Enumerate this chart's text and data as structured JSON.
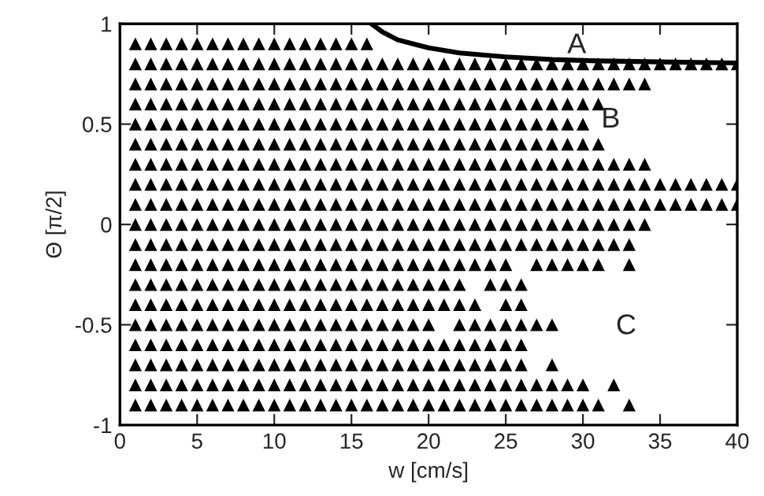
{
  "chart_data": {
    "type": "scatter",
    "xlabel": "w [cm/s]",
    "ylabel": "Θ [π/2]",
    "xlim": [
      0,
      40
    ],
    "ylim": [
      -1,
      1
    ],
    "xticks": [
      0,
      5,
      10,
      15,
      20,
      25,
      30,
      35,
      40
    ],
    "yticks": [
      -1,
      -0.5,
      0,
      0.5,
      1
    ],
    "grid": false,
    "legend": false,
    "marker": "triangle",
    "annotations": [
      "A",
      "B",
      "C"
    ],
    "series": [
      {
        "color": "#000000",
        "x": [
          1,
          2,
          3,
          4,
          5,
          6,
          7,
          8,
          9,
          10,
          11,
          12,
          13,
          14,
          15,
          16
        ],
        "values": [
          0.9,
          0.9,
          0.9,
          0.9,
          0.9,
          0.9,
          0.9,
          0.9,
          0.9,
          0.9,
          0.9,
          0.9,
          0.9,
          0.9,
          0.9,
          0.9
        ]
      },
      {
        "color": "#000000",
        "x": [
          1,
          2,
          3,
          4,
          5,
          6,
          7,
          8,
          9,
          10,
          11,
          12,
          13,
          14,
          15,
          16,
          17,
          18,
          19,
          20,
          21,
          22,
          23,
          24,
          25,
          26,
          27,
          28,
          29,
          30,
          31,
          32,
          33,
          34,
          35,
          36,
          37,
          38,
          39,
          40
        ],
        "values": [
          0.8,
          0.8,
          0.8,
          0.8,
          0.8,
          0.8,
          0.8,
          0.8,
          0.8,
          0.8,
          0.8,
          0.8,
          0.8,
          0.8,
          0.8,
          0.8,
          0.8,
          0.8,
          0.8,
          0.8,
          0.8,
          0.8,
          0.8,
          0.8,
          0.8,
          0.8,
          0.8,
          0.8,
          0.8,
          0.8,
          0.8,
          0.8,
          0.8,
          0.8,
          0.8,
          0.8,
          0.8,
          0.8,
          0.8,
          0.8
        ]
      },
      {
        "color": "#000000",
        "x": [
          1,
          2,
          3,
          4,
          5,
          6,
          7,
          8,
          9,
          10,
          11,
          12,
          13,
          14,
          15,
          16,
          17,
          18,
          19,
          20,
          21,
          22,
          23,
          24,
          25,
          26,
          27,
          28,
          29,
          30,
          31,
          32,
          33,
          34
        ],
        "values": [
          0.7,
          0.7,
          0.7,
          0.7,
          0.7,
          0.7,
          0.7,
          0.7,
          0.7,
          0.7,
          0.7,
          0.7,
          0.7,
          0.7,
          0.7,
          0.7,
          0.7,
          0.7,
          0.7,
          0.7,
          0.7,
          0.7,
          0.7,
          0.7,
          0.7,
          0.7,
          0.7,
          0.7,
          0.7,
          0.7,
          0.7,
          0.7,
          0.7,
          0.7
        ]
      },
      {
        "color": "#000000",
        "x": [
          1,
          2,
          3,
          4,
          5,
          6,
          7,
          8,
          9,
          10,
          11,
          12,
          13,
          14,
          15,
          16,
          17,
          18,
          19,
          20,
          21,
          22,
          23,
          24,
          25,
          26,
          27,
          28,
          29,
          30,
          31
        ],
        "values": [
          0.6,
          0.6,
          0.6,
          0.6,
          0.6,
          0.6,
          0.6,
          0.6,
          0.6,
          0.6,
          0.6,
          0.6,
          0.6,
          0.6,
          0.6,
          0.6,
          0.6,
          0.6,
          0.6,
          0.6,
          0.6,
          0.6,
          0.6,
          0.6,
          0.6,
          0.6,
          0.6,
          0.6,
          0.6,
          0.6,
          0.6
        ]
      },
      {
        "color": "#000000",
        "x": [
          1,
          2,
          3,
          4,
          5,
          6,
          7,
          8,
          9,
          10,
          11,
          12,
          13,
          14,
          15,
          16,
          17,
          18,
          19,
          20,
          21,
          22,
          23,
          24,
          25,
          26,
          27,
          28,
          29,
          30
        ],
        "values": [
          0.5,
          0.5,
          0.5,
          0.5,
          0.5,
          0.5,
          0.5,
          0.5,
          0.5,
          0.5,
          0.5,
          0.5,
          0.5,
          0.5,
          0.5,
          0.5,
          0.5,
          0.5,
          0.5,
          0.5,
          0.5,
          0.5,
          0.5,
          0.5,
          0.5,
          0.5,
          0.5,
          0.5,
          0.5,
          0.5
        ]
      },
      {
        "color": "#000000",
        "x": [
          1,
          2,
          3,
          4,
          5,
          6,
          7,
          8,
          9,
          10,
          11,
          12,
          13,
          14,
          15,
          16,
          17,
          18,
          19,
          20,
          21,
          22,
          23,
          24,
          25,
          26,
          27,
          28,
          29,
          30,
          31
        ],
        "values": [
          0.4,
          0.4,
          0.4,
          0.4,
          0.4,
          0.4,
          0.4,
          0.4,
          0.4,
          0.4,
          0.4,
          0.4,
          0.4,
          0.4,
          0.4,
          0.4,
          0.4,
          0.4,
          0.4,
          0.4,
          0.4,
          0.4,
          0.4,
          0.4,
          0.4,
          0.4,
          0.4,
          0.4,
          0.4,
          0.4,
          0.4
        ]
      },
      {
        "color": "#000000",
        "x": [
          1,
          2,
          3,
          4,
          5,
          6,
          7,
          8,
          9,
          10,
          11,
          12,
          13,
          14,
          15,
          16,
          17,
          18,
          19,
          20,
          21,
          22,
          23,
          24,
          25,
          26,
          27,
          28,
          29,
          30,
          31,
          32,
          33,
          34
        ],
        "values": [
          0.3,
          0.3,
          0.3,
          0.3,
          0.3,
          0.3,
          0.3,
          0.3,
          0.3,
          0.3,
          0.3,
          0.3,
          0.3,
          0.3,
          0.3,
          0.3,
          0.3,
          0.3,
          0.3,
          0.3,
          0.3,
          0.3,
          0.3,
          0.3,
          0.3,
          0.3,
          0.3,
          0.3,
          0.3,
          0.3,
          0.3,
          0.3,
          0.3,
          0.3
        ]
      },
      {
        "color": "#000000",
        "x": [
          1,
          2,
          3,
          4,
          5,
          6,
          7,
          8,
          9,
          10,
          11,
          12,
          13,
          14,
          15,
          16,
          17,
          18,
          19,
          20,
          21,
          22,
          23,
          24,
          25,
          26,
          27,
          28,
          29,
          30,
          31,
          32,
          33,
          34,
          35,
          36,
          37,
          38,
          39,
          40
        ],
        "values": [
          0.2,
          0.2,
          0.2,
          0.2,
          0.2,
          0.2,
          0.2,
          0.2,
          0.2,
          0.2,
          0.2,
          0.2,
          0.2,
          0.2,
          0.2,
          0.2,
          0.2,
          0.2,
          0.2,
          0.2,
          0.2,
          0.2,
          0.2,
          0.2,
          0.2,
          0.2,
          0.2,
          0.2,
          0.2,
          0.2,
          0.2,
          0.2,
          0.2,
          0.2,
          0.2,
          0.2,
          0.2,
          0.2,
          0.2,
          0.2
        ]
      },
      {
        "color": "#000000",
        "x": [
          1,
          2,
          3,
          4,
          5,
          6,
          7,
          8,
          9,
          10,
          11,
          12,
          13,
          14,
          15,
          16,
          17,
          18,
          19,
          20,
          21,
          22,
          23,
          24,
          25,
          26,
          27,
          28,
          29,
          30,
          31,
          32,
          33,
          34,
          35,
          36,
          37,
          38,
          39,
          40
        ],
        "values": [
          0.1,
          0.1,
          0.1,
          0.1,
          0.1,
          0.1,
          0.1,
          0.1,
          0.1,
          0.1,
          0.1,
          0.1,
          0.1,
          0.1,
          0.1,
          0.1,
          0.1,
          0.1,
          0.1,
          0.1,
          0.1,
          0.1,
          0.1,
          0.1,
          0.1,
          0.1,
          0.1,
          0.1,
          0.1,
          0.1,
          0.1,
          0.1,
          0.1,
          0.1,
          0.1,
          0.1,
          0.1,
          0.1,
          0.1,
          0.1
        ]
      },
      {
        "color": "#000000",
        "x": [
          1,
          2,
          3,
          4,
          5,
          6,
          7,
          8,
          9,
          10,
          11,
          12,
          13,
          14,
          15,
          16,
          17,
          18,
          19,
          20,
          21,
          22,
          23,
          24,
          25,
          26,
          27,
          28,
          29,
          30,
          31,
          32,
          33,
          34
        ],
        "values": [
          0,
          0,
          0,
          0,
          0,
          0,
          0,
          0,
          0,
          0,
          0,
          0,
          0,
          0,
          0,
          0,
          0,
          0,
          0,
          0,
          0,
          0,
          0,
          0,
          0,
          0,
          0,
          0,
          0,
          0,
          0,
          0,
          0,
          0
        ]
      },
      {
        "color": "#000000",
        "x": [
          1,
          2,
          3,
          4,
          5,
          6,
          7,
          8,
          9,
          10,
          11,
          12,
          13,
          14,
          15,
          16,
          17,
          18,
          19,
          20,
          21,
          22,
          23,
          24,
          25,
          26,
          27,
          28,
          29,
          30,
          31,
          32,
          33
        ],
        "values": [
          -0.1,
          -0.1,
          -0.1,
          -0.1,
          -0.1,
          -0.1,
          -0.1,
          -0.1,
          -0.1,
          -0.1,
          -0.1,
          -0.1,
          -0.1,
          -0.1,
          -0.1,
          -0.1,
          -0.1,
          -0.1,
          -0.1,
          -0.1,
          -0.1,
          -0.1,
          -0.1,
          -0.1,
          -0.1,
          -0.1,
          -0.1,
          -0.1,
          -0.1,
          -0.1,
          -0.1,
          -0.1,
          -0.1
        ]
      },
      {
        "color": "#000000",
        "x": [
          1,
          2,
          3,
          4,
          5,
          6,
          7,
          8,
          9,
          10,
          11,
          12,
          13,
          14,
          15,
          16,
          17,
          18,
          19,
          20,
          21,
          22,
          23,
          24,
          25,
          27,
          28,
          29,
          30,
          31,
          33
        ],
        "values": [
          -0.2,
          -0.2,
          -0.2,
          -0.2,
          -0.2,
          -0.2,
          -0.2,
          -0.2,
          -0.2,
          -0.2,
          -0.2,
          -0.2,
          -0.2,
          -0.2,
          -0.2,
          -0.2,
          -0.2,
          -0.2,
          -0.2,
          -0.2,
          -0.2,
          -0.2,
          -0.2,
          -0.2,
          -0.2,
          -0.2,
          -0.2,
          -0.2,
          -0.2,
          -0.2,
          -0.2
        ]
      },
      {
        "color": "#000000",
        "x": [
          1,
          2,
          3,
          4,
          5,
          6,
          7,
          8,
          9,
          10,
          11,
          12,
          13,
          14,
          15,
          16,
          17,
          18,
          19,
          20,
          21,
          22,
          24,
          25,
          26
        ],
        "values": [
          -0.3,
          -0.3,
          -0.3,
          -0.3,
          -0.3,
          -0.3,
          -0.3,
          -0.3,
          -0.3,
          -0.3,
          -0.3,
          -0.3,
          -0.3,
          -0.3,
          -0.3,
          -0.3,
          -0.3,
          -0.3,
          -0.3,
          -0.3,
          -0.3,
          -0.3,
          -0.3,
          -0.3,
          -0.3
        ]
      },
      {
        "color": "#000000",
        "x": [
          1,
          2,
          3,
          4,
          5,
          6,
          7,
          8,
          9,
          10,
          11,
          12,
          13,
          14,
          15,
          16,
          17,
          18,
          19,
          20,
          21,
          22,
          23,
          25,
          26
        ],
        "values": [
          -0.4,
          -0.4,
          -0.4,
          -0.4,
          -0.4,
          -0.4,
          -0.4,
          -0.4,
          -0.4,
          -0.4,
          -0.4,
          -0.4,
          -0.4,
          -0.4,
          -0.4,
          -0.4,
          -0.4,
          -0.4,
          -0.4,
          -0.4,
          -0.4,
          -0.4,
          -0.4,
          -0.4,
          -0.4
        ]
      },
      {
        "color": "#000000",
        "x": [
          1,
          2,
          3,
          4,
          5,
          6,
          7,
          8,
          9,
          10,
          11,
          12,
          13,
          14,
          15,
          16,
          17,
          18,
          19,
          20,
          22,
          23,
          24,
          25,
          26,
          27,
          28
        ],
        "values": [
          -0.5,
          -0.5,
          -0.5,
          -0.5,
          -0.5,
          -0.5,
          -0.5,
          -0.5,
          -0.5,
          -0.5,
          -0.5,
          -0.5,
          -0.5,
          -0.5,
          -0.5,
          -0.5,
          -0.5,
          -0.5,
          -0.5,
          -0.5,
          -0.5,
          -0.5,
          -0.5,
          -0.5,
          -0.5,
          -0.5,
          -0.5
        ]
      },
      {
        "color": "#000000",
        "x": [
          1,
          2,
          3,
          4,
          5,
          6,
          7,
          8,
          9,
          10,
          11,
          12,
          13,
          14,
          15,
          16,
          17,
          18,
          19,
          20,
          21,
          22,
          23,
          24,
          25,
          26
        ],
        "values": [
          -0.6,
          -0.6,
          -0.6,
          -0.6,
          -0.6,
          -0.6,
          -0.6,
          -0.6,
          -0.6,
          -0.6,
          -0.6,
          -0.6,
          -0.6,
          -0.6,
          -0.6,
          -0.6,
          -0.6,
          -0.6,
          -0.6,
          -0.6,
          -0.6,
          -0.6,
          -0.6,
          -0.6,
          -0.6,
          -0.6
        ]
      },
      {
        "color": "#000000",
        "x": [
          1,
          2,
          3,
          4,
          5,
          6,
          7,
          8,
          9,
          10,
          11,
          12,
          13,
          14,
          15,
          16,
          17,
          18,
          19,
          20,
          21,
          22,
          23,
          24,
          25,
          26,
          28
        ],
        "values": [
          -0.7,
          -0.7,
          -0.7,
          -0.7,
          -0.7,
          -0.7,
          -0.7,
          -0.7,
          -0.7,
          -0.7,
          -0.7,
          -0.7,
          -0.7,
          -0.7,
          -0.7,
          -0.7,
          -0.7,
          -0.7,
          -0.7,
          -0.7,
          -0.7,
          -0.7,
          -0.7,
          -0.7,
          -0.7,
          -0.7,
          -0.7
        ]
      },
      {
        "color": "#000000",
        "x": [
          1,
          2,
          3,
          4,
          5,
          6,
          7,
          8,
          9,
          10,
          11,
          12,
          13,
          14,
          15,
          16,
          17,
          18,
          19,
          20,
          21,
          22,
          23,
          24,
          25,
          26,
          27,
          28,
          29,
          30,
          32
        ],
        "values": [
          -0.8,
          -0.8,
          -0.8,
          -0.8,
          -0.8,
          -0.8,
          -0.8,
          -0.8,
          -0.8,
          -0.8,
          -0.8,
          -0.8,
          -0.8,
          -0.8,
          -0.8,
          -0.8,
          -0.8,
          -0.8,
          -0.8,
          -0.8,
          -0.8,
          -0.8,
          -0.8,
          -0.8,
          -0.8,
          -0.8,
          -0.8,
          -0.8,
          -0.8,
          -0.8,
          -0.8
        ]
      },
      {
        "color": "#000000",
        "x": [
          1,
          2,
          3,
          4,
          5,
          6,
          7,
          8,
          9,
          10,
          11,
          12,
          13,
          14,
          15,
          16,
          17,
          18,
          19,
          20,
          21,
          22,
          23,
          24,
          25,
          26,
          27,
          28,
          29,
          30,
          31,
          33
        ],
        "values": [
          -0.9,
          -0.9,
          -0.9,
          -0.9,
          -0.9,
          -0.9,
          -0.9,
          -0.9,
          -0.9,
          -0.9,
          -0.9,
          -0.9,
          -0.9,
          -0.9,
          -0.9,
          -0.9,
          -0.9,
          -0.9,
          -0.9,
          -0.9,
          -0.9,
          -0.9,
          -0.9,
          -0.9,
          -0.9,
          -0.9,
          -0.9,
          -0.9,
          -0.9,
          -0.9,
          -0.9,
          -0.9
        ]
      },
      {
        "type": "line",
        "color": "#000000",
        "marker": "none",
        "x": [
          16.3,
          17,
          18,
          19,
          20,
          22,
          25,
          28,
          31,
          35,
          40
        ],
        "values": [
          1.0,
          0.96,
          0.92,
          0.9,
          0.88,
          0.855,
          0.835,
          0.822,
          0.815,
          0.81,
          0.805
        ]
      }
    ]
  }
}
